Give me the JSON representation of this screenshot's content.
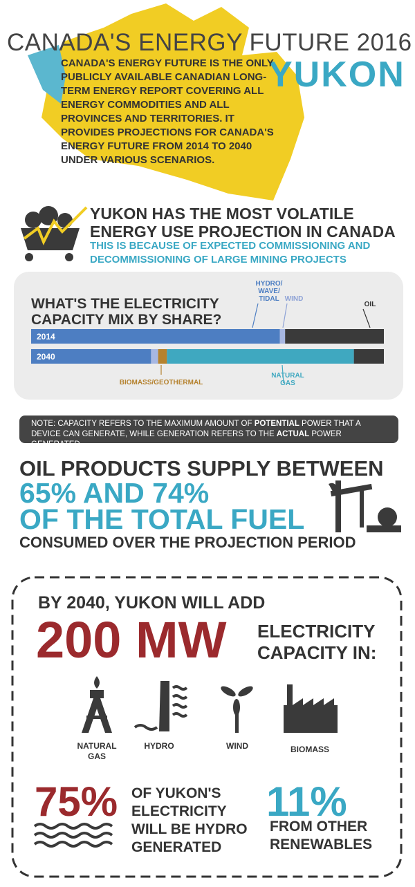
{
  "header": {
    "title": "CANADA'S ENERGY FUTURE 2016",
    "region": "YUKON",
    "intro": "CANADA'S ENERGY FUTURE IS THE ONLY PUBLICLY AVAILABLE CANADIAN LONG-TERM ENERGY REPORT COVERING ALL ENERGY COMMODITIES AND ALL PROVINCES AND TERRITORIES. IT PROVIDES PROJECTIONS FOR CANADA'S ENERGY FUTURE FROM 2014 TO 2040 UNDER VARIOUS SCENARIOS."
  },
  "volatile": {
    "headline": "YUKON HAS THE MOST VOLATILE ENERGY USE PROJECTION IN CANADA",
    "subhead": "THIS IS BECAUSE OF EXPECTED COMMISSIONING AND DECOMMISSIONING OF LARGE MINING PROJECTS"
  },
  "chart_data": {
    "type": "bar",
    "orientation": "horizontal",
    "stacked": true,
    "title": "WHAT'S THE ELECTRICITY CAPACITY MIX BY SHARE?",
    "categories": [
      "2014",
      "2040"
    ],
    "xlim": [
      0,
      100
    ],
    "series": [
      {
        "name": "HYDRO/ WAVE/ TIDAL",
        "color": "#4d7ec2",
        "values": [
          70.5,
          34
        ]
      },
      {
        "name": "WIND",
        "color": "#a7b7e2",
        "values": [
          1.5,
          2
        ]
      },
      {
        "name": "BIOMASS/GEOTHERMAL",
        "color": "#b5822e",
        "values": [
          0,
          2.5
        ]
      },
      {
        "name": "NATURAL GAS",
        "color": "#3fa8c0",
        "values": [
          0,
          53
        ]
      },
      {
        "name": "OIL",
        "color": "#3a3a3a",
        "values": [
          28,
          8.5
        ]
      }
    ]
  },
  "note": {
    "parts": [
      "NOTE: CAPACITY REFERS TO THE MAXIMUM AMOUNT OF ",
      "POTENTIAL",
      " POWER THAT A DEVICE CAN GENERATE, WHILE GENERATION REFERS TO THE ",
      "ACTUAL",
      " POWER GENERATED"
    ]
  },
  "oil": {
    "line1": "OIL PRODUCTS SUPPLY BETWEEN",
    "line2": "65% AND 74%",
    "line3": "OF THE TOTAL FUEL",
    "line4": "CONSUMED OVER THE PROJECTION PERIOD"
  },
  "capacity": {
    "lead": "BY 2040, YUKON WILL ADD",
    "amount": "200 MW",
    "label": "ELECTRICITY CAPACITY IN:",
    "sources": [
      "NATURAL GAS",
      "HYDRO",
      "WIND",
      "BIOMASS"
    ]
  },
  "shares": {
    "hydro_value": "75%",
    "hydro_text": "OF YUKON'S ELECTRICITY WILL BE HYDRO GENERATED",
    "other_value": "11%",
    "other_text": "FROM OTHER RENEWABLES"
  }
}
